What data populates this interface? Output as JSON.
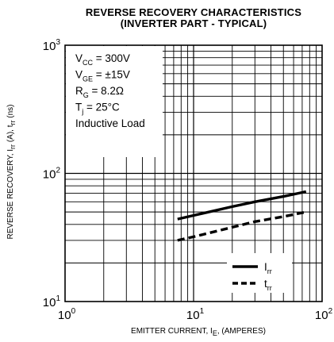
{
  "chart_data": {
    "type": "line",
    "title": "REVERSE RECOVERY CHARACTERISTICS",
    "subtitle": "(INVERTER PART - TYPICAL)",
    "xlabel": {
      "main": "EMITTER CURRENT, I",
      "sub": "E",
      "tail": ", (AMPERES)"
    },
    "ylabel": {
      "a": "REVERSE RECOVERY, I",
      "a_sub": "rr",
      "b": " (A), t",
      "b_sub": "rr",
      "c": " (ns)"
    },
    "x_scale": "log",
    "y_scale": "log",
    "xlim": [
      1,
      100
    ],
    "ylim": [
      10,
      1000
    ],
    "grid": true,
    "x_ticks": [
      {
        "value": 1,
        "base": "10",
        "exp": "0"
      },
      {
        "value": 10,
        "base": "10",
        "exp": "1"
      },
      {
        "value": 100,
        "base": "10",
        "exp": "2"
      }
    ],
    "y_ticks": [
      {
        "value": 10,
        "base": "10",
        "exp": "1"
      },
      {
        "value": 100,
        "base": "10",
        "exp": "2"
      },
      {
        "value": 1000,
        "base": "10",
        "exp": "3"
      }
    ],
    "conditions": [
      {
        "main": "V",
        "sub": "CC",
        "rest": " = 300V"
      },
      {
        "main": "V",
        "sub": "GE",
        "rest": " = ±15V"
      },
      {
        "main": "R",
        "sub": "G",
        "rest": " = 8.2Ω"
      },
      {
        "main": "T",
        "sub": "j",
        "rest": " = 25°C"
      },
      {
        "main": "Inductive Load",
        "sub": "",
        "rest": ""
      }
    ],
    "legend_position": "bottom-right",
    "series": [
      {
        "name": "I",
        "name_sub": "rr",
        "style": "solid",
        "x": [
          7.5,
          10,
          20,
          30,
          50,
          75
        ],
        "y": [
          44,
          47,
          55,
          60,
          66,
          72
        ]
      },
      {
        "name": "t",
        "name_sub": "rr",
        "style": "dashed",
        "x": [
          7.5,
          10,
          20,
          30,
          50,
          75
        ],
        "y": [
          30,
          32,
          38,
          42,
          46,
          50
        ]
      }
    ]
  }
}
